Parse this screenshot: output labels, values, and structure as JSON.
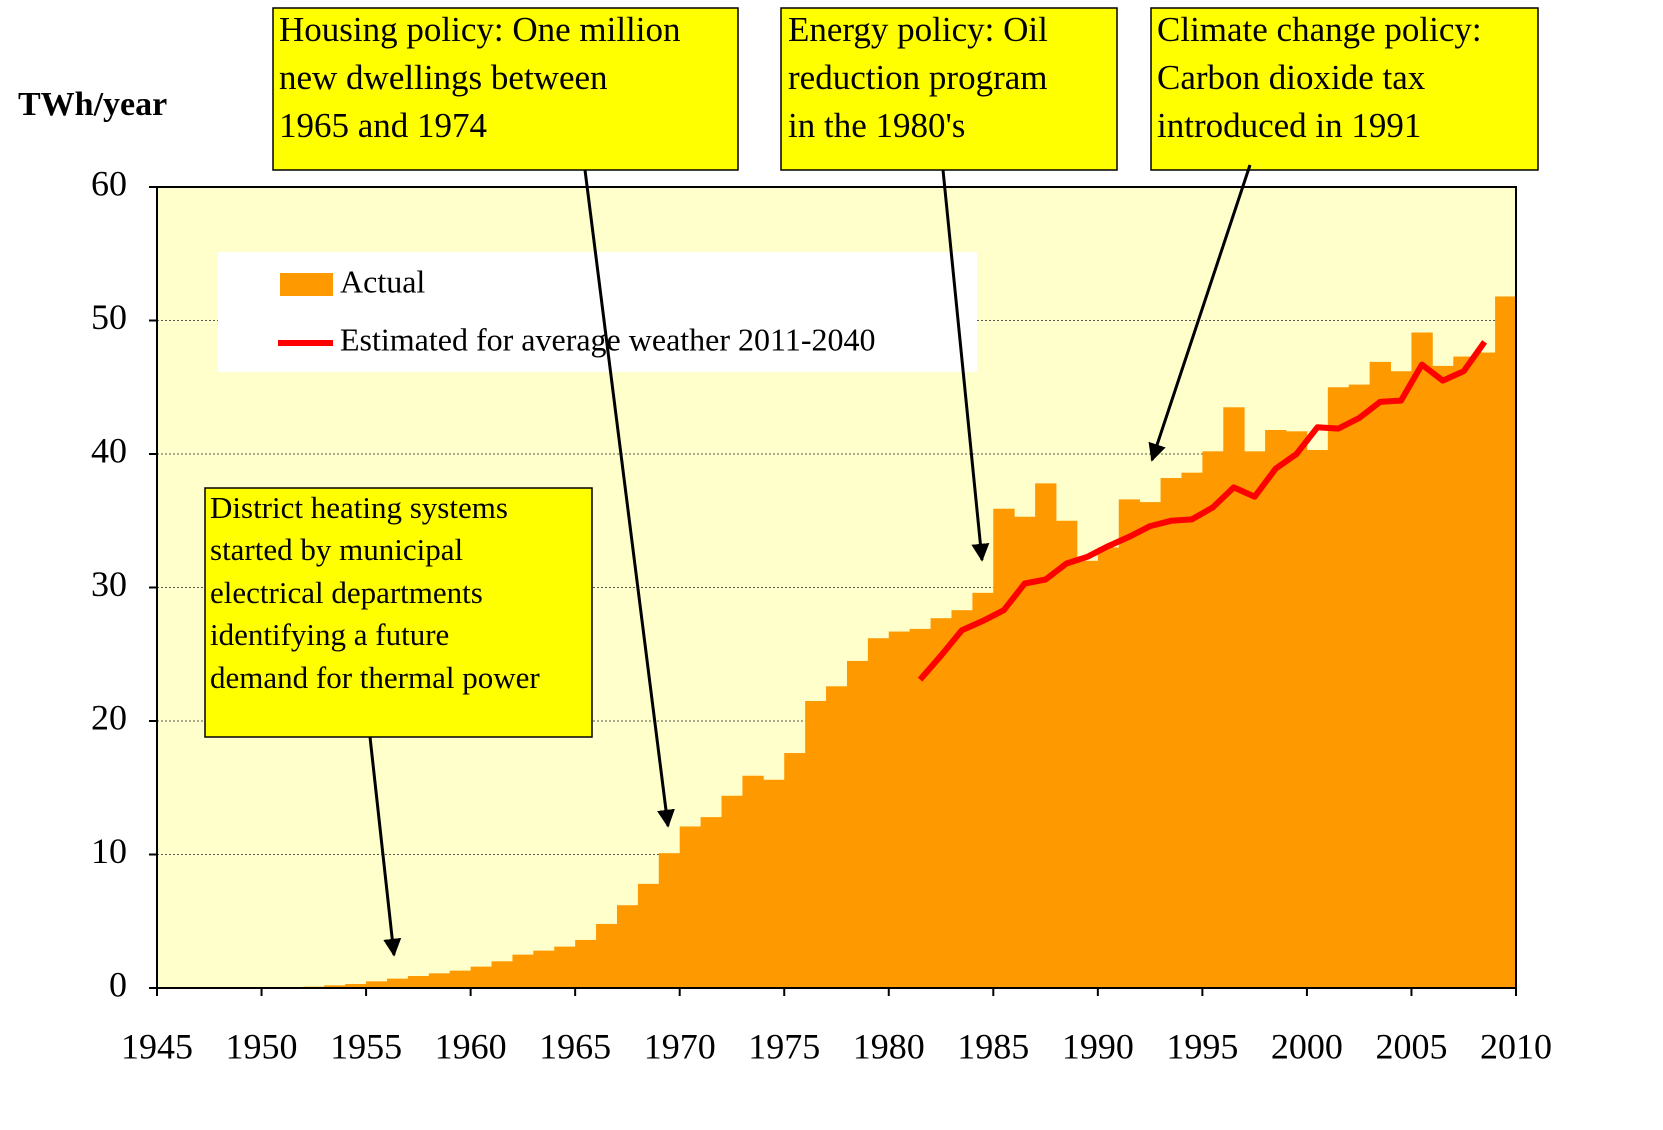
{
  "chart_data": {
    "type": "bar",
    "y_label": "TWh/year",
    "x": [
      1951,
      1952,
      1953,
      1954,
      1955,
      1956,
      1957,
      1958,
      1959,
      1960,
      1961,
      1962,
      1963,
      1964,
      1965,
      1966,
      1967,
      1968,
      1969,
      1970,
      1971,
      1972,
      1973,
      1974,
      1975,
      1976,
      1977,
      1978,
      1979,
      1980,
      1981,
      1982,
      1983,
      1984,
      1985,
      1986,
      1987,
      1988,
      1989,
      1990,
      1991,
      1992,
      1993,
      1994,
      1995,
      1996,
      1997,
      1998,
      1999,
      2000,
      2001,
      2002,
      2003,
      2004,
      2005,
      2006,
      2007,
      2008,
      2009
    ],
    "series": [
      {
        "name": "Actual",
        "color": "#ff9900",
        "type": "bar",
        "values": [
          0.05,
          0.1,
          0.2,
          0.3,
          0.5,
          0.7,
          0.9,
          1.1,
          1.3,
          1.6,
          2.0,
          2.5,
          2.8,
          3.1,
          3.6,
          4.8,
          6.2,
          7.8,
          10.1,
          12.1,
          12.8,
          14.4,
          15.9,
          15.6,
          17.6,
          21.5,
          22.6,
          24.5,
          26.2,
          26.7,
          26.9,
          27.7,
          28.3,
          29.6,
          35.9,
          35.3,
          37.8,
          35.0,
          32.0,
          33.0,
          36.6,
          36.4,
          38.2,
          38.6,
          40.2,
          43.5,
          40.2,
          41.8,
          41.7,
          40.3,
          45.0,
          45.2,
          46.9,
          46.2,
          49.1,
          46.6,
          47.3,
          47.6,
          51.8
        ]
      },
      {
        "name": "Estimated for average weather 2011-2040",
        "color": "#ff0000",
        "type": "line",
        "values": [
          null,
          null,
          null,
          null,
          null,
          null,
          null,
          null,
          null,
          null,
          null,
          null,
          null,
          null,
          null,
          null,
          null,
          null,
          null,
          null,
          null,
          null,
          null,
          null,
          null,
          null,
          null,
          null,
          null,
          null,
          23.1,
          24.9,
          26.8,
          27.5,
          28.3,
          30.3,
          30.6,
          31.8,
          32.3,
          33.1,
          33.8,
          34.6,
          35.0,
          35.1,
          36.0,
          37.5,
          36.8,
          38.9,
          40.0,
          42.0,
          41.9,
          42.7,
          43.9,
          44.0,
          46.7,
          45.5,
          46.2,
          48.4,
          null
        ]
      }
    ],
    "xlim": [
      1945,
      2010
    ],
    "xticks": [
      1945,
      1950,
      1955,
      1960,
      1965,
      1970,
      1975,
      1980,
      1985,
      1990,
      1995,
      2000,
      2005,
      2010
    ],
    "ylim": [
      0,
      60
    ],
    "yticks": [
      0,
      10,
      20,
      30,
      40,
      50,
      60
    ],
    "grid": true,
    "legend": "upper left",
    "annotations": [
      {
        "lines": [
          "Housing policy: One million",
          "new dwellings between",
          "1965 and 1974"
        ]
      },
      {
        "lines": [
          "Energy policy: Oil",
          "reduction program",
          "in the 1980's"
        ]
      },
      {
        "lines": [
          "Climate change policy:",
          "Carbon dioxide tax",
          "introduced in 1991"
        ]
      },
      {
        "lines": [
          "District heating systems",
          "started by municipal",
          "electrical departments",
          "identifying a future",
          "demand for thermal power"
        ]
      }
    ]
  }
}
